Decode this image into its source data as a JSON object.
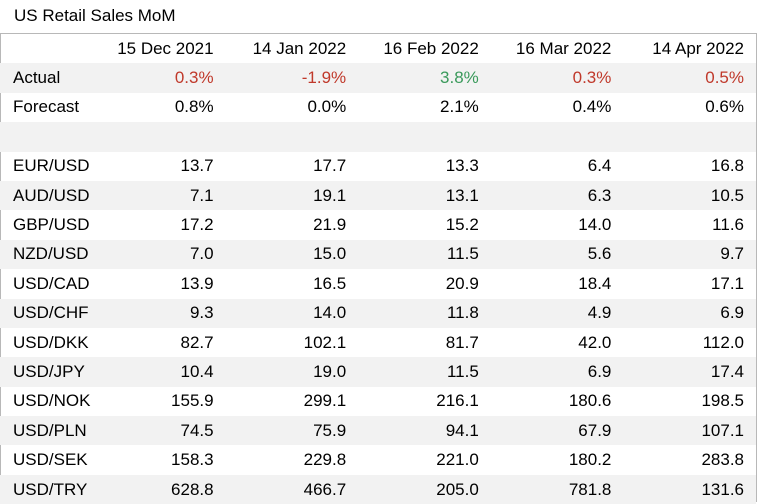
{
  "title": "US Retail Sales MoM",
  "colors": {
    "negative": "#c0392b",
    "positive": "#3a9a5b",
    "shade": "#f2f2f2"
  },
  "columns": [
    "15 Dec 2021",
    "14 Jan 2022",
    "16 Feb 2022",
    "16 Mar 2022",
    "14 Apr 2022"
  ],
  "actual": {
    "label": "Actual",
    "values": [
      "0.3%",
      "-1.9%",
      "3.8%",
      "0.3%",
      "0.5%"
    ]
  },
  "forecast": {
    "label": "Forecast",
    "values": [
      "0.8%",
      "0.0%",
      "2.1%",
      "0.4%",
      "0.6%"
    ]
  },
  "pairs": [
    {
      "pair": "EUR/USD",
      "values": [
        "13.7",
        "17.7",
        "13.3",
        "6.4",
        "16.8"
      ]
    },
    {
      "pair": "AUD/USD",
      "values": [
        "7.1",
        "19.1",
        "13.1",
        "6.3",
        "10.5"
      ]
    },
    {
      "pair": "GBP/USD",
      "values": [
        "17.2",
        "21.9",
        "15.2",
        "14.0",
        "11.6"
      ]
    },
    {
      "pair": "NZD/USD",
      "values": [
        "7.0",
        "15.0",
        "11.5",
        "5.6",
        "9.7"
      ]
    },
    {
      "pair": "USD/CAD",
      "values": [
        "13.9",
        "16.5",
        "20.9",
        "18.4",
        "17.1"
      ]
    },
    {
      "pair": "USD/CHF",
      "values": [
        "9.3",
        "14.0",
        "11.8",
        "4.9",
        "6.9"
      ]
    },
    {
      "pair": "USD/DKK",
      "values": [
        "82.7",
        "102.1",
        "81.7",
        "42.0",
        "112.0"
      ]
    },
    {
      "pair": "USD/JPY",
      "values": [
        "10.4",
        "19.0",
        "11.5",
        "6.9",
        "17.4"
      ]
    },
    {
      "pair": "USD/NOK",
      "values": [
        "155.9",
        "299.1",
        "216.1",
        "180.6",
        "198.5"
      ]
    },
    {
      "pair": "USD/PLN",
      "values": [
        "74.5",
        "75.9",
        "94.1",
        "67.9",
        "107.1"
      ]
    },
    {
      "pair": "USD/SEK",
      "values": [
        "158.3",
        "229.8",
        "221.0",
        "180.2",
        "283.8"
      ]
    },
    {
      "pair": "USD/TRY",
      "values": [
        "628.8",
        "466.7",
        "205.0",
        "781.8",
        "131.6"
      ]
    }
  ]
}
